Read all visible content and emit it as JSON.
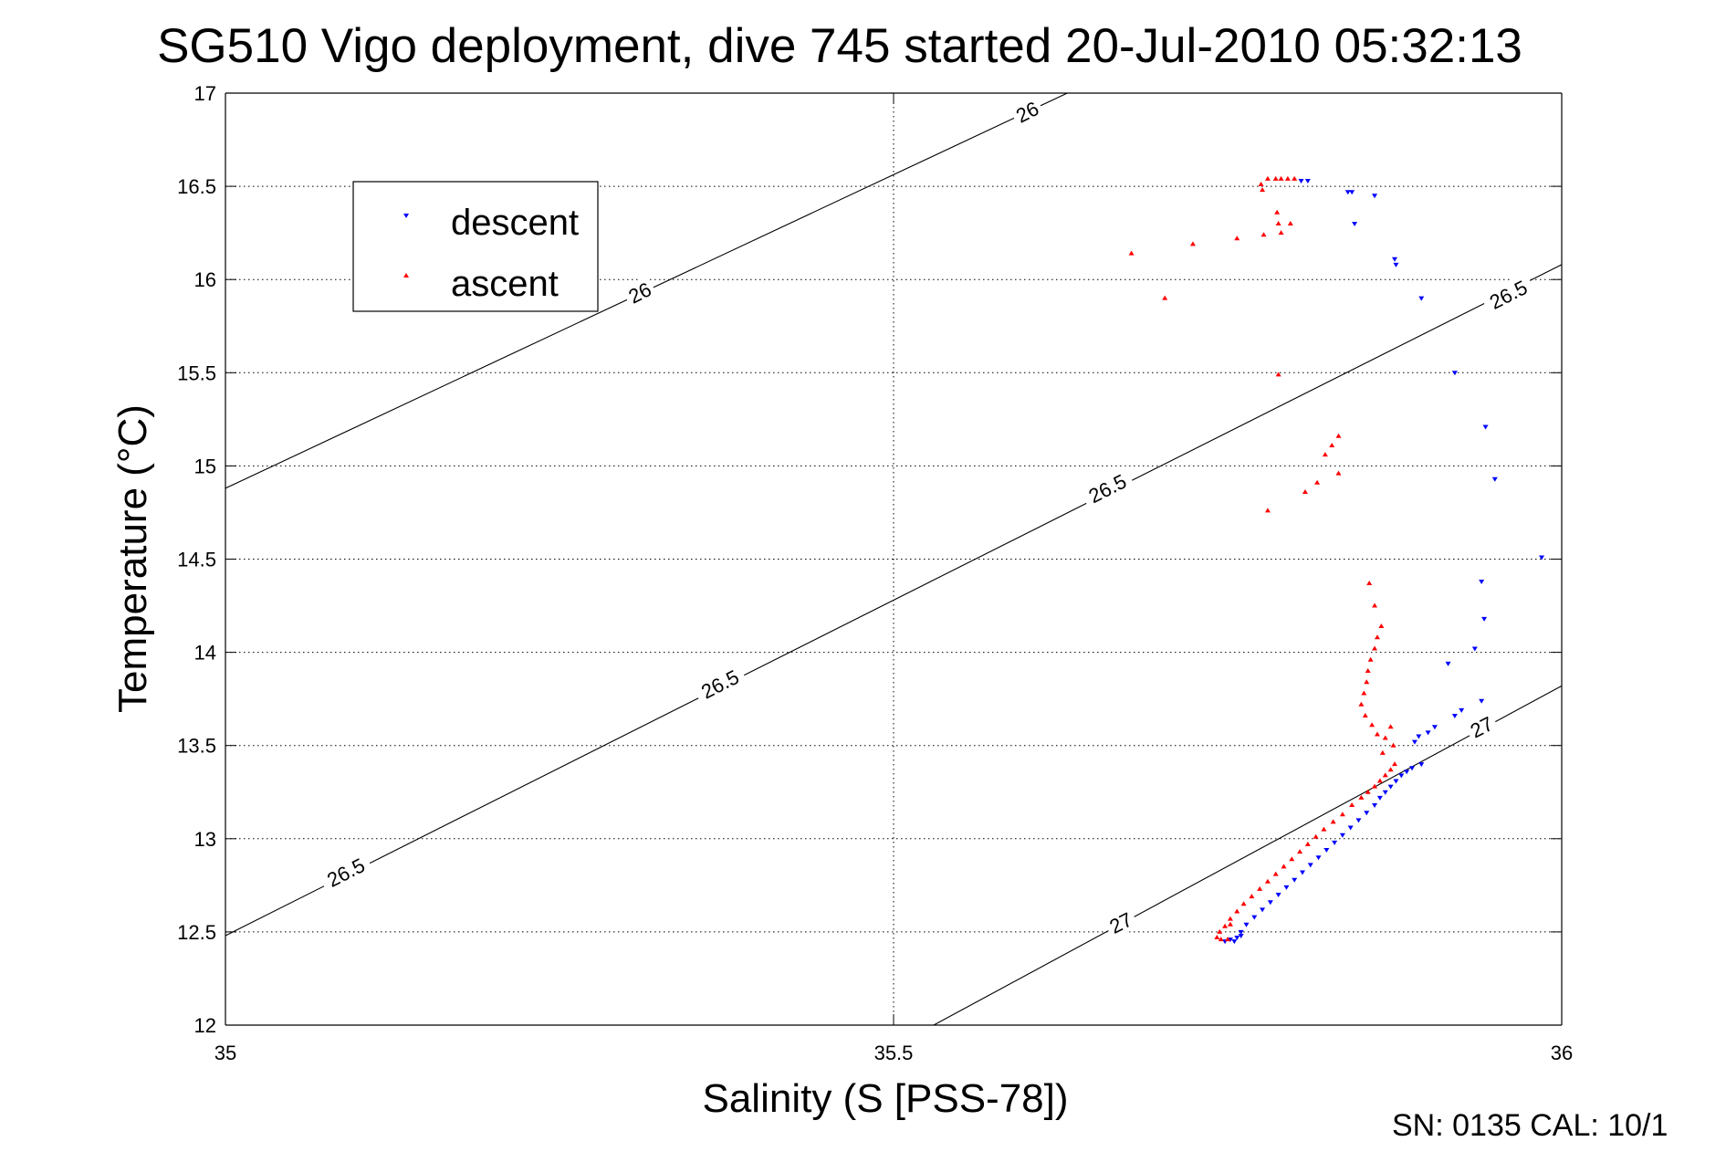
{
  "chart_data": {
    "type": "scatter",
    "title": "SG510 Vigo deployment, dive 745 started 20-Jul-2010 05:32:13",
    "xlabel": "Salinity (S [PSS-78])",
    "ylabel": "Temperature (°C)",
    "xlim": [
      35,
      36
    ],
    "ylim": [
      12,
      17
    ],
    "xticks": [
      "35",
      "35.5",
      "36"
    ],
    "yticks": [
      "12",
      "12.5",
      "13",
      "13.5",
      "14",
      "14.5",
      "15",
      "15.5",
      "16",
      "16.5",
      "17"
    ],
    "grid": true,
    "legend_position": "upper-left",
    "footer": "SN: 0135  CAL: 10/1",
    "isopycnals": [
      {
        "label": "26",
        "points": [
          [
            35.0,
            14.88
          ],
          [
            35.63,
            17.0
          ]
        ]
      },
      {
        "label": "26.5",
        "points": [
          [
            35.0,
            12.48
          ],
          [
            36.0,
            16.08
          ]
        ]
      },
      {
        "label": "27",
        "points": [
          [
            35.53,
            12.0
          ],
          [
            36.0,
            13.82
          ]
        ]
      }
    ],
    "isopycnal_labels": [
      {
        "text": "26",
        "x": 35.6,
        "y": 16.9
      },
      {
        "text": "26",
        "x": 35.31,
        "y": 15.93
      },
      {
        "text": "26.5",
        "x": 35.96,
        "y": 15.92
      },
      {
        "text": "26.5",
        "x": 35.66,
        "y": 14.88
      },
      {
        "text": "26.5",
        "x": 35.37,
        "y": 13.83
      },
      {
        "text": "26.5",
        "x": 35.09,
        "y": 12.82
      },
      {
        "text": "27",
        "x": 35.94,
        "y": 13.6
      },
      {
        "text": "27",
        "x": 35.67,
        "y": 12.55
      }
    ],
    "series": [
      {
        "name": "descent",
        "color": "#0000ff",
        "marker": "triangle-down",
        "points": [
          [
            35.805,
            16.53
          ],
          [
            35.81,
            16.53
          ],
          [
            35.84,
            16.47
          ],
          [
            35.843,
            16.47
          ],
          [
            35.86,
            16.45
          ],
          [
            35.845,
            16.3
          ],
          [
            35.875,
            16.11
          ],
          [
            35.876,
            16.08
          ],
          [
            35.895,
            15.9
          ],
          [
            35.92,
            15.5
          ],
          [
            35.943,
            15.21
          ],
          [
            35.95,
            14.93
          ],
          [
            35.985,
            14.51
          ],
          [
            35.94,
            14.38
          ],
          [
            35.942,
            14.18
          ],
          [
            35.935,
            14.02
          ],
          [
            35.915,
            13.94
          ],
          [
            35.94,
            13.74
          ],
          [
            35.925,
            13.69
          ],
          [
            35.92,
            13.66
          ],
          [
            35.905,
            13.6
          ],
          [
            35.9,
            13.57
          ],
          [
            35.893,
            13.55
          ],
          [
            35.89,
            13.52
          ],
          [
            35.895,
            13.4
          ],
          [
            35.888,
            13.38
          ],
          [
            35.884,
            13.36
          ],
          [
            35.88,
            13.34
          ],
          [
            35.876,
            13.31
          ],
          [
            35.872,
            13.28
          ],
          [
            35.868,
            13.25
          ],
          [
            35.864,
            13.22
          ],
          [
            35.86,
            13.18
          ],
          [
            35.854,
            13.14
          ],
          [
            35.848,
            13.1
          ],
          [
            35.842,
            13.06
          ],
          [
            35.836,
            13.02
          ],
          [
            35.83,
            12.98
          ],
          [
            35.824,
            12.94
          ],
          [
            35.818,
            12.9
          ],
          [
            35.812,
            12.86
          ],
          [
            35.806,
            12.82
          ],
          [
            35.8,
            12.78
          ],
          [
            35.794,
            12.74
          ],
          [
            35.788,
            12.7
          ],
          [
            35.782,
            12.66
          ],
          [
            35.776,
            12.62
          ],
          [
            35.77,
            12.58
          ],
          [
            35.764,
            12.54
          ],
          [
            35.76,
            12.5
          ],
          [
            35.757,
            12.47
          ],
          [
            35.752,
            12.46
          ],
          [
            35.748,
            12.45
          ],
          [
            35.755,
            12.45
          ],
          [
            35.76,
            12.48
          ]
        ]
      },
      {
        "name": "ascent",
        "color": "#ff0000",
        "marker": "triangle-up",
        "points": [
          [
            35.78,
            16.54
          ],
          [
            35.786,
            16.54
          ],
          [
            35.79,
            16.54
          ],
          [
            35.795,
            16.54
          ],
          [
            35.8,
            16.54
          ],
          [
            35.775,
            16.51
          ],
          [
            35.776,
            16.48
          ],
          [
            35.787,
            16.36
          ],
          [
            35.788,
            16.3
          ],
          [
            35.79,
            16.25
          ],
          [
            35.797,
            16.3
          ],
          [
            35.777,
            16.24
          ],
          [
            35.757,
            16.22
          ],
          [
            35.724,
            16.19
          ],
          [
            35.678,
            16.14
          ],
          [
            35.703,
            15.9
          ],
          [
            35.788,
            15.49
          ],
          [
            35.833,
            15.16
          ],
          [
            35.828,
            15.11
          ],
          [
            35.823,
            15.06
          ],
          [
            35.833,
            14.96
          ],
          [
            35.817,
            14.91
          ],
          [
            35.808,
            14.86
          ],
          [
            35.78,
            14.76
          ],
          [
            35.856,
            14.37
          ],
          [
            35.86,
            14.25
          ],
          [
            35.865,
            14.14
          ],
          [
            35.862,
            14.08
          ],
          [
            35.86,
            14.02
          ],
          [
            35.857,
            13.96
          ],
          [
            35.855,
            13.9
          ],
          [
            35.854,
            13.84
          ],
          [
            35.852,
            13.78
          ],
          [
            35.85,
            13.72
          ],
          [
            35.853,
            13.66
          ],
          [
            35.858,
            13.61
          ],
          [
            35.862,
            13.56
          ],
          [
            35.868,
            13.54
          ],
          [
            35.872,
            13.6
          ],
          [
            35.874,
            13.5
          ],
          [
            35.866,
            13.46
          ],
          [
            35.875,
            13.4
          ],
          [
            35.872,
            13.37
          ],
          [
            35.868,
            13.34
          ],
          [
            35.864,
            13.31
          ],
          [
            35.86,
            13.28
          ],
          [
            35.855,
            13.25
          ],
          [
            35.85,
            13.22
          ],
          [
            35.843,
            13.18
          ],
          [
            35.836,
            13.13
          ],
          [
            35.829,
            13.09
          ],
          [
            35.822,
            13.05
          ],
          [
            35.816,
            13.01
          ],
          [
            35.81,
            12.97
          ],
          [
            35.804,
            12.93
          ],
          [
            35.798,
            12.89
          ],
          [
            35.792,
            12.85
          ],
          [
            35.786,
            12.81
          ],
          [
            35.78,
            12.77
          ],
          [
            35.774,
            12.73
          ],
          [
            35.768,
            12.69
          ],
          [
            35.762,
            12.65
          ],
          [
            35.757,
            12.61
          ],
          [
            35.752,
            12.57
          ],
          [
            35.748,
            12.53
          ],
          [
            35.752,
            12.54
          ],
          [
            35.744,
            12.5
          ],
          [
            35.742,
            12.47
          ],
          [
            35.745,
            12.46
          ],
          [
            35.75,
            12.46
          ]
        ]
      }
    ]
  }
}
